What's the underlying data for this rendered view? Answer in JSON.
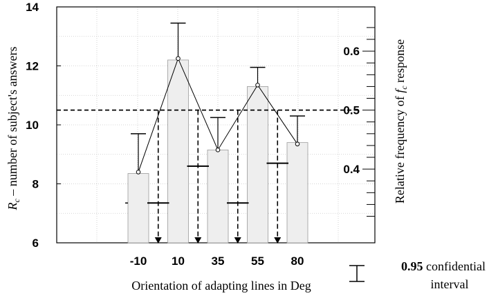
{
  "chart_data": {
    "type": "bar",
    "categories": [
      "-10",
      "10",
      "35",
      "55",
      "80"
    ],
    "bar_values": [
      8.35,
      12.2,
      9.15,
      11.3,
      9.4
    ],
    "bar_color": "#eeeeee",
    "line_series": {
      "values": [
        8.4,
        12.25,
        9.15,
        11.35,
        9.35
      ]
    },
    "error_upper": [
      9.7,
      13.45,
      10.25,
      11.95,
      10.3
    ],
    "group_means": [
      {
        "between": [
          0,
          1
        ],
        "value": 7.35,
        "arrow_left_level": 7.35
      },
      {
        "between": [
          1,
          2
        ],
        "value": 8.6
      },
      {
        "between": [
          2,
          3
        ],
        "value": 7.35
      },
      {
        "between": [
          3,
          4
        ],
        "value": 8.7
      }
    ],
    "arrow_sources": [
      {
        "after_bar": 0,
        "from": 10.5
      },
      {
        "after_bar": 1,
        "from": 10.5
      },
      {
        "after_bar": 2,
        "from": 10.5
      },
      {
        "after_bar": 3,
        "from": 10.5
      }
    ],
    "threshold": {
      "left_value": 10.5,
      "right_label": "0.5"
    },
    "y_left": {
      "label_prefix": "R",
      "label_sub": "c",
      "label_rest": " – number of subject's answers",
      "min": 6,
      "max": 14,
      "ticks": [
        "6",
        "8",
        "10",
        "12",
        "14"
      ]
    },
    "y_right": {
      "label_prefix": "Relative frequency of ",
      "label_italic": "f",
      "label_sub": "c",
      "label_rest": " response",
      "tick_labels": [
        "0.4",
        "0.5",
        "0.6"
      ]
    },
    "xlabel": "Orientation of adapting lines in Deg",
    "legend": {
      "bold": "0.95",
      "line1": " confidential",
      "line2": "interval"
    },
    "grid": true
  }
}
